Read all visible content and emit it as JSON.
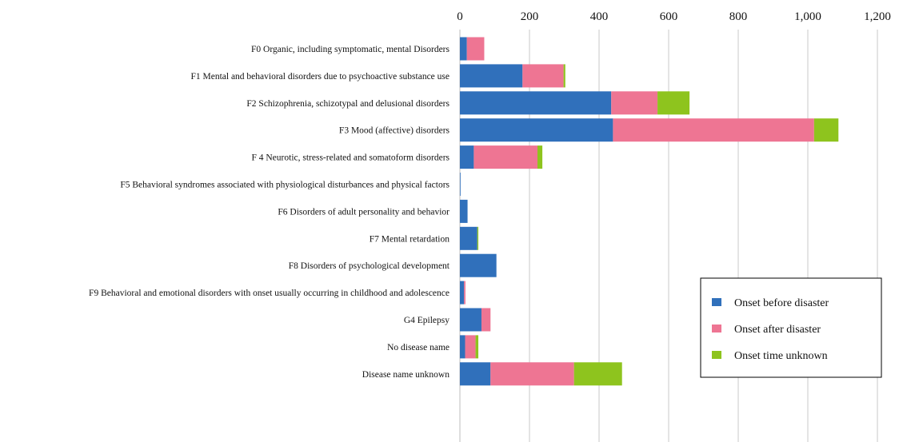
{
  "chart_data": {
    "type": "bar",
    "orientation": "horizontal",
    "stacked": true,
    "categories": [
      "F0 Organic, including symptomatic, mental Disorders",
      "F1 Mental and behavioral disorders due to psychoactive substance use",
      "F2 Schizophrenia, schizotypal and delusional disorders",
      "F3 Mood (affective) disorders",
      "F 4 Neurotic, stress-related and somatoform disorders",
      "F5 Behavioral syndromes associated with physiological disturbances and physical factors",
      "F6 Disorders of adult personality and behavior",
      "F7 Mental retardation",
      "F8 Disorders of psychological development",
      "F9    Behavioral and emotional disorders with onset usually occurring in childhood and adolescence",
      "G4 Epilepsy",
      "No disease name",
      "Disease name unknown"
    ],
    "series": [
      {
        "name": "Onset before disaster",
        "color": "#3070bb",
        "values": [
          20,
          180,
          435,
          440,
          40,
          1,
          22,
          50,
          105,
          12,
          62,
          15,
          88
        ]
      },
      {
        "name": "Onset after disaster",
        "color": "#ee7593",
        "values": [
          50,
          118,
          133,
          578,
          183,
          0,
          0,
          0,
          0,
          4,
          26,
          30,
          240
        ]
      },
      {
        "name": "Onset time unknown",
        "color": "#8ec41e",
        "values": [
          0,
          5,
          92,
          70,
          14,
          0,
          0,
          3,
          0,
          0,
          0,
          8,
          138
        ]
      }
    ],
    "xticks": [
      "0",
      "200",
      "400",
      "600",
      "800",
      "1,000",
      "1,200"
    ],
    "xlim": [
      0,
      1200
    ],
    "xaxis_position": "top",
    "grid": "vertical",
    "legend": {
      "position": "right",
      "boxed": true
    },
    "title": "",
    "xlabel": "",
    "ylabel": ""
  }
}
